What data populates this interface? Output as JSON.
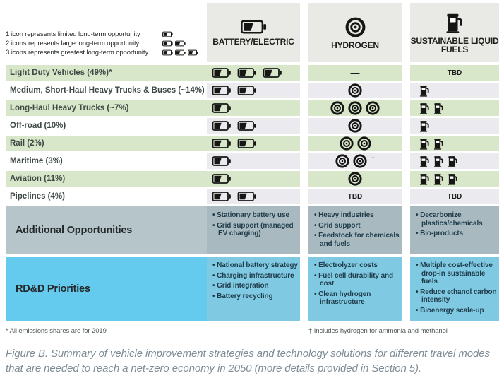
{
  "legend": {
    "icon": "battery-icon",
    "items": [
      {
        "label": "1 icon represents limited long-term opportunity",
        "icon_count": 1
      },
      {
        "label": "2 icons represents large long-term opportunity",
        "icon_count": 2
      },
      {
        "label": "3 icons represents greatest long-term opportunity",
        "icon_count": 3
      }
    ]
  },
  "chart_data": {
    "type": "table",
    "icon_meaning": "1 icon = limited, 2 icons = large, 3 icons = greatest long-term opportunity",
    "columns": [
      {
        "label": "BATTERY/ELECTRIC",
        "icon": "battery-icon"
      },
      {
        "label": "HYDROGEN",
        "icon": "hydrogen-icon"
      },
      {
        "label": "SUSTAINABLE LIQUID FUELS",
        "icon": "fuel-pump-icon"
      }
    ],
    "rows": [
      {
        "label": "Light Duty Vehicles (49%)*",
        "battery": 3,
        "hydrogen": "—",
        "fuels": "TBD"
      },
      {
        "label": "Medium, Short-Haul Heavy Trucks & Buses (~14%)",
        "battery": 2,
        "hydrogen": 1,
        "fuels": 1
      },
      {
        "label": "Long-Haul Heavy Trucks (~7%)",
        "battery": 1,
        "hydrogen": 3,
        "fuels": 2
      },
      {
        "label": "Off-road (10%)",
        "battery": 2,
        "hydrogen": 1,
        "fuels": 1
      },
      {
        "label": "Rail (2%)",
        "battery": 2,
        "hydrogen": 2,
        "fuels": 2
      },
      {
        "label": "Maritime (3%)",
        "battery": 1,
        "hydrogen": 2,
        "hydrogen_note": "†",
        "fuels": 3
      },
      {
        "label": "Aviation (11%)",
        "battery": 1,
        "hydrogen": 1,
        "fuels": 3
      },
      {
        "label": "Pipelines (4%)",
        "battery": 2,
        "hydrogen": "TBD",
        "fuels": "TBD"
      }
    ],
    "additional_opportunities": {
      "label": "Additional Opportunities",
      "battery": [
        "Stationary battery use",
        "Grid support (managed EV charging)"
      ],
      "hydrogen": [
        "Heavy industries",
        "Grid support",
        "Feedstock for chemicals and fuels"
      ],
      "fuels": [
        "Decarbonize plastics/chemicals",
        "Bio-products"
      ]
    },
    "rdd_priorities": {
      "label": "RD&D Priorities",
      "battery": [
        "National battery strategy",
        "Charging infrastructure",
        "Grid integration",
        "Battery recycling"
      ],
      "hydrogen": [
        "Electrolyzer costs",
        "Fuel cell durability and cost",
        "Clean hydrogen infrastructure"
      ],
      "fuels": [
        "Multiple cost-effective drop-in sustainable fuels",
        "Reduce ethanol carbon intensity",
        "Bioenergy scale-up"
      ]
    }
  },
  "footnotes": {
    "left": "* All emissions shares are for 2019",
    "right": "† Includes hydrogen for ammonia and methanol"
  },
  "caption": "Figure B. Summary of vehicle improvement strategies and technology solutions for different travel modes that are needed to reach a net-zero economy in 2050 (more details provided in Section 5).",
  "colors": {
    "green_row": "#d8e6c9",
    "header_gray": "#e9eae6",
    "neutral_cell": "#eaeaef",
    "ao_label": "#b6c5c9",
    "ao_cell": "#a8bac0",
    "rdd_label": "#64cbee",
    "rdd_cell": "#7fc9e2",
    "accent_bar": "#57b14c",
    "icon": "#161615",
    "caption_text": "#7f8d96"
  }
}
